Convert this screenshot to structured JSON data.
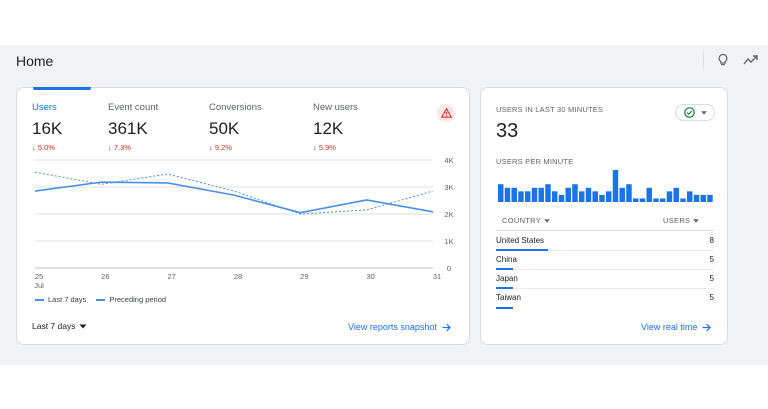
{
  "page": {
    "title": "Home"
  },
  "header": {
    "insights_icon": "lightbulb-icon",
    "trends_icon": "trending-icon"
  },
  "metrics": [
    {
      "label": "Users",
      "value": "16K",
      "delta": "5.0%",
      "active": true
    },
    {
      "label": "Event count",
      "value": "361K",
      "delta": "7.3%",
      "active": false
    },
    {
      "label": "Conversions",
      "value": "50K",
      "delta": "9.2%",
      "active": false
    },
    {
      "label": "New users",
      "value": "12K",
      "delta": "5.9%",
      "active": false
    }
  ],
  "chart_data": {
    "type": "line",
    "x": [
      "25",
      "26",
      "27",
      "28",
      "29",
      "30",
      "31"
    ],
    "x_sublabel": "Jul",
    "y_ticks": [
      "4K",
      "3K",
      "2K",
      "1K",
      "0"
    ],
    "ylim": [
      0,
      4000
    ],
    "grid": true,
    "series": [
      {
        "name": "Last 7 days",
        "style": "solid",
        "values": [
          2850,
          3180,
          3150,
          2700,
          2050,
          2520,
          2080
        ]
      },
      {
        "name": "Preceding period",
        "style": "dashed",
        "values": [
          3550,
          3100,
          3480,
          2850,
          2000,
          2150,
          2850
        ]
      }
    ],
    "legend_position": "bottom-left",
    "colors": {
      "line": "#4a90e2",
      "grid": "#e0e0e0"
    }
  },
  "main_card": {
    "date_range": "Last 7 days",
    "snapshot_link": "View reports snapshot"
  },
  "realtime": {
    "users_label": "USERS IN LAST 30 MINUTES",
    "users_value": "33",
    "per_minute_label": "USERS PER MINUTE",
    "per_minute_values": [
      5,
      4,
      4,
      3,
      3,
      4,
      4,
      5,
      3,
      2,
      4,
      5,
      3,
      4,
      3,
      2,
      3,
      9,
      4,
      5,
      1,
      1,
      4,
      1,
      1,
      3,
      4,
      1,
      3,
      2,
      2,
      2
    ],
    "country_header": "COUNTRY",
    "users_header": "USERS",
    "rows": [
      {
        "country": "United States",
        "users": "8",
        "fraction": 1.0
      },
      {
        "country": "China",
        "users": "5",
        "fraction": 0.32
      },
      {
        "country": "Japan",
        "users": "5",
        "fraction": 0.32
      },
      {
        "country": "Taiwan",
        "users": "5",
        "fraction": 0.32
      }
    ],
    "realtime_link": "View real time"
  },
  "colors": {
    "accent": "#1a73e8",
    "negative": "#d93025",
    "ok": "#188038"
  }
}
